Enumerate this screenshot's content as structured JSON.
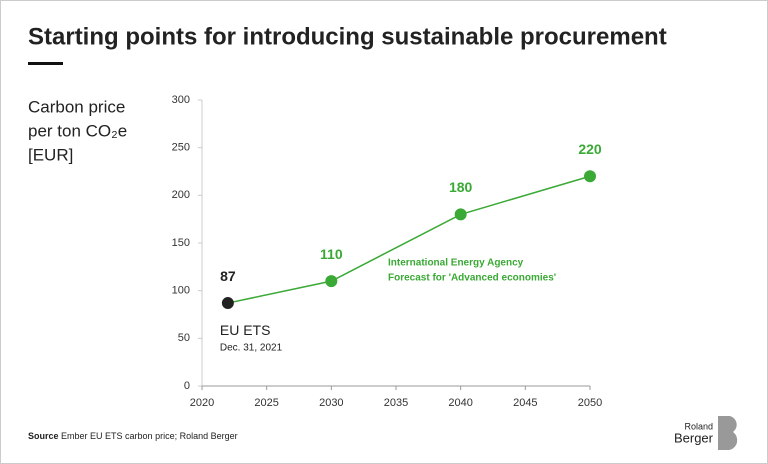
{
  "chart_data": {
    "type": "line",
    "title": "Starting points for introducing sustainable procurement",
    "y_label": [
      "Carbon price",
      "per ton CO₂e",
      "[EUR]"
    ],
    "x": [
      2022,
      2030,
      2040,
      2050
    ],
    "series": [
      {
        "name": "Carbon price",
        "color": "#3aa935",
        "values": [
          87,
          110,
          180,
          220
        ]
      }
    ],
    "marker_colors": [
      "#222222",
      "#3aa935",
      "#3aa935",
      "#3aa935"
    ],
    "xlim": [
      2020,
      2050
    ],
    "xticks": [
      2020,
      2025,
      2030,
      2035,
      2040,
      2045,
      2050
    ],
    "ylim": [
      0,
      300
    ],
    "yticks": [
      0,
      50,
      100,
      150,
      200,
      250,
      300
    ],
    "annotations": [
      "EU ETS",
      "Dec. 31, 2021",
      "International Energy Agency",
      "Forecast for 'Advanced economies'"
    ],
    "source_label": "Source",
    "source": "Ember EU ETS carbon price; Roland Berger",
    "logo": [
      "Roland",
      "Berger"
    ]
  }
}
